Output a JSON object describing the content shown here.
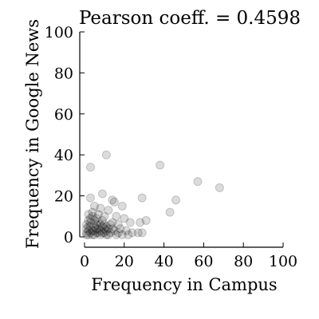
{
  "chart_data": {
    "type": "scatter",
    "title": "Pearson coeff. = 0.4598",
    "xlabel": "Frequency in Campus",
    "ylabel": "Frequency in Google News",
    "xlim": [
      0,
      100
    ],
    "ylim": [
      0,
      100
    ],
    "xticks": [
      "0",
      "20",
      "40",
      "60",
      "80",
      "100"
    ],
    "yticks": [
      "0",
      "20",
      "40",
      "60",
      "80",
      "100"
    ],
    "grid": false,
    "marker_color": "#000000",
    "marker_opacity": 0.14,
    "points": [
      {
        "x": 3,
        "y": 34
      },
      {
        "x": 11,
        "y": 40
      },
      {
        "x": 38,
        "y": 35
      },
      {
        "x": 57,
        "y": 27
      },
      {
        "x": 68,
        "y": 24
      },
      {
        "x": 46,
        "y": 18
      },
      {
        "x": 43,
        "y": 12
      },
      {
        "x": 29,
        "y": 19
      },
      {
        "x": 9,
        "y": 21
      },
      {
        "x": 3,
        "y": 19
      },
      {
        "x": 14,
        "y": 18
      },
      {
        "x": 15,
        "y": 17
      },
      {
        "x": 19,
        "y": 15
      },
      {
        "x": 5,
        "y": 15
      },
      {
        "x": 8,
        "y": 14
      },
      {
        "x": 12,
        "y": 13
      },
      {
        "x": 4,
        "y": 12
      },
      {
        "x": 2,
        "y": 11
      },
      {
        "x": 7,
        "y": 11
      },
      {
        "x": 10,
        "y": 10
      },
      {
        "x": 16,
        "y": 10
      },
      {
        "x": 20,
        "y": 9
      },
      {
        "x": 31,
        "y": 8
      },
      {
        "x": 23,
        "y": 7
      },
      {
        "x": 28,
        "y": 7
      },
      {
        "x": 17,
        "y": 6
      },
      {
        "x": 13,
        "y": 6
      },
      {
        "x": 6,
        "y": 6
      },
      {
        "x": 3,
        "y": 5
      },
      {
        "x": 9,
        "y": 5
      },
      {
        "x": 11,
        "y": 5
      },
      {
        "x": 14,
        "y": 4
      },
      {
        "x": 18,
        "y": 4
      },
      {
        "x": 21,
        "y": 3
      },
      {
        "x": 24,
        "y": 2
      },
      {
        "x": 27,
        "y": 2
      },
      {
        "x": 29,
        "y": 2
      },
      {
        "x": 22,
        "y": 1
      },
      {
        "x": 19,
        "y": 1
      },
      {
        "x": 16,
        "y": 1
      },
      {
        "x": 12,
        "y": 1
      },
      {
        "x": 8,
        "y": 1
      },
      {
        "x": 5,
        "y": 1
      },
      {
        "x": 2,
        "y": 1
      },
      {
        "x": 1,
        "y": 2
      },
      {
        "x": 2,
        "y": 3
      },
      {
        "x": 4,
        "y": 3
      },
      {
        "x": 6,
        "y": 2
      },
      {
        "x": 7,
        "y": 4
      },
      {
        "x": 8,
        "y": 3
      },
      {
        "x": 10,
        "y": 2
      },
      {
        "x": 11,
        "y": 3
      },
      {
        "x": 13,
        "y": 2
      },
      {
        "x": 15,
        "y": 3
      },
      {
        "x": 17,
        "y": 2
      },
      {
        "x": 1,
        "y": 4
      },
      {
        "x": 3,
        "y": 7
      },
      {
        "x": 5,
        "y": 8
      },
      {
        "x": 6,
        "y": 9
      },
      {
        "x": 2,
        "y": 8
      },
      {
        "x": 4,
        "y": 10
      },
      {
        "x": 1,
        "y": 6
      },
      {
        "x": 5,
        "y": 5
      },
      {
        "x": 7,
        "y": 7
      },
      {
        "x": 9,
        "y": 8
      },
      {
        "x": 10,
        "y": 6
      },
      {
        "x": 12,
        "y": 4
      },
      {
        "x": 14,
        "y": 7
      },
      {
        "x": 1,
        "y": 1
      },
      {
        "x": 3,
        "y": 2
      },
      {
        "x": 4,
        "y": 1
      },
      {
        "x": 6,
        "y": 4
      },
      {
        "x": 8,
        "y": 6
      },
      {
        "x": 9,
        "y": 2
      },
      {
        "x": 11,
        "y": 1
      },
      {
        "x": 2,
        "y": 5
      },
      {
        "x": 3,
        "y": 9
      },
      {
        "x": 5,
        "y": 3
      },
      {
        "x": 7,
        "y": 2
      },
      {
        "x": 10,
        "y": 4
      }
    ]
  }
}
